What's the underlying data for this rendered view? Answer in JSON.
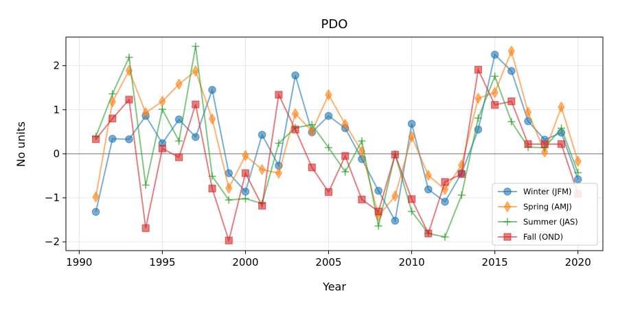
{
  "chart_data": {
    "type": "line",
    "title": "PDO",
    "xlabel": "Year",
    "ylabel": "No units",
    "xlim": [
      1989.2,
      2021.5
    ],
    "ylim": [
      -2.2,
      2.65
    ],
    "xticks": [
      1990,
      1995,
      2000,
      2005,
      2010,
      2015,
      2020
    ],
    "yticks": [
      -2,
      -1,
      0,
      1,
      2
    ],
    "ytick_labels": [
      "−2",
      "−1",
      "0",
      "1",
      "2"
    ],
    "grid": true,
    "zero_line": true,
    "legend_position": "lower-right",
    "x": [
      1991,
      1992,
      1993,
      1994,
      1995,
      1996,
      1997,
      1998,
      1999,
      2000,
      2001,
      2002,
      2003,
      2004,
      2005,
      2006,
      2007,
      2008,
      2009,
      2010,
      2011,
      2012,
      2013,
      2014,
      2015,
      2016,
      2017,
      2018,
      2019,
      2020
    ],
    "series": [
      {
        "name": "Winter (JFM)",
        "color": "#1f77b4",
        "marker": "circle",
        "values": [
          -1.32,
          0.34,
          0.33,
          0.86,
          0.24,
          0.78,
          0.38,
          1.45,
          -0.44,
          -0.86,
          0.43,
          -0.27,
          1.78,
          0.49,
          0.86,
          0.58,
          -0.12,
          -0.84,
          -1.52,
          0.68,
          -0.81,
          -1.09,
          -0.44,
          0.55,
          2.25,
          1.88,
          0.74,
          0.32,
          0.48,
          -0.58
        ]
      },
      {
        "name": "Spring (AMJ)",
        "color": "#ff7f0e",
        "marker": "diamond",
        "values": [
          -0.98,
          1.18,
          1.89,
          0.93,
          1.19,
          1.58,
          1.88,
          0.79,
          -0.78,
          -0.04,
          -0.36,
          -0.44,
          0.91,
          0.51,
          1.34,
          0.67,
          0.06,
          -1.41,
          -0.96,
          0.39,
          -0.49,
          -0.81,
          -0.26,
          1.26,
          1.39,
          2.33,
          0.94,
          0.04,
          1.06,
          -0.17
        ]
      },
      {
        "name": "Summer (JAS)",
        "color": "#2ca02c",
        "marker": "plus",
        "values": [
          0.39,
          1.36,
          2.19,
          -0.71,
          1.01,
          0.29,
          2.44,
          -0.51,
          -1.05,
          -1.02,
          -1.13,
          0.24,
          0.59,
          0.66,
          0.14,
          -0.41,
          0.29,
          -1.64,
          -0.01,
          -1.31,
          -1.81,
          -1.89,
          -0.94,
          0.81,
          1.76,
          0.73,
          0.15,
          0.14,
          0.58,
          -0.43
        ]
      },
      {
        "name": "Fall (OND)",
        "color": "#d62728",
        "marker": "square",
        "values": [
          0.33,
          0.8,
          1.23,
          -1.69,
          0.12,
          -0.08,
          1.12,
          -0.79,
          -1.97,
          -0.44,
          -1.18,
          1.34,
          0.55,
          -0.31,
          -0.87,
          -0.05,
          -1.04,
          -1.31,
          -0.02,
          -1.03,
          -1.81,
          -0.64,
          -0.46,
          1.91,
          1.11,
          1.19,
          0.22,
          0.22,
          0.22,
          -0.91
        ]
      }
    ]
  }
}
